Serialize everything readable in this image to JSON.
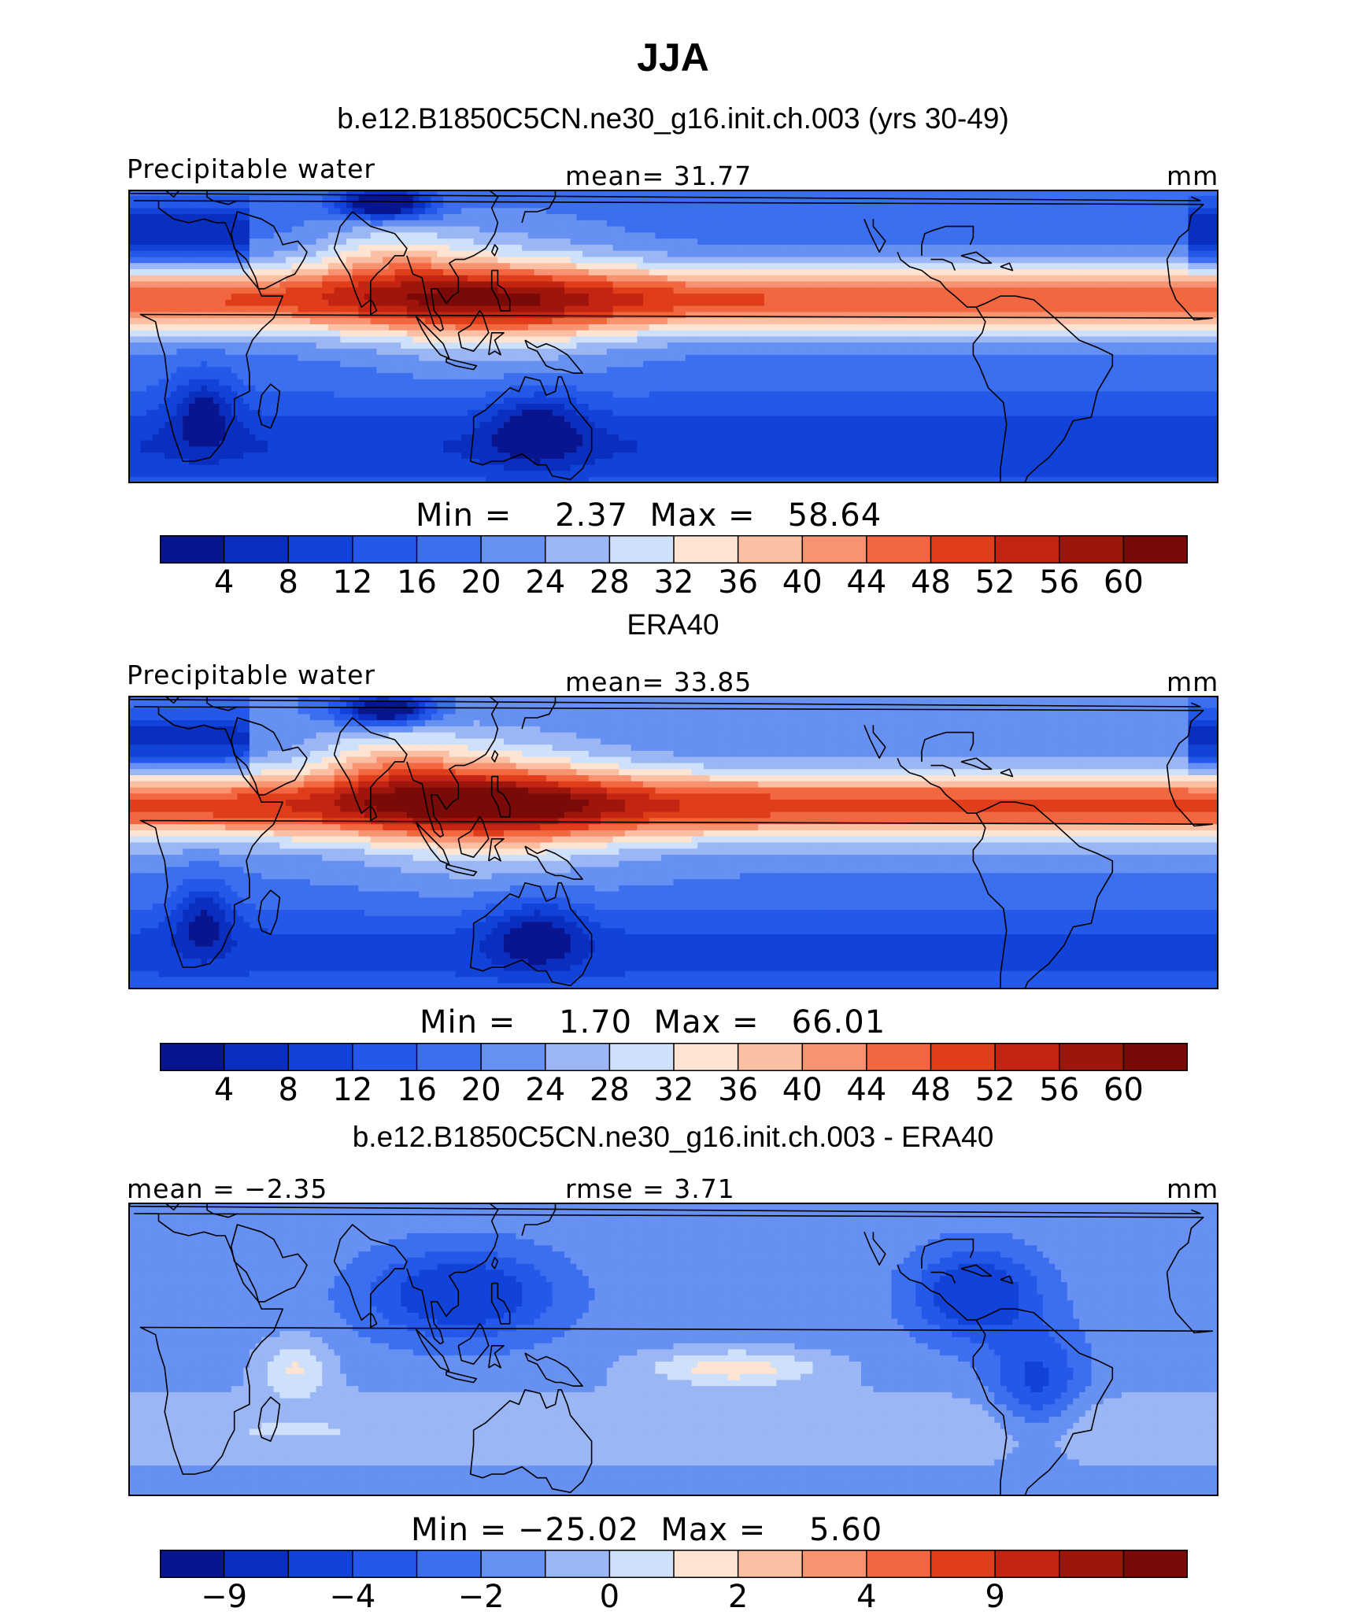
{
  "title": "JJA",
  "palettes": {
    "abs": [
      "#08158f",
      "#0a2fbf",
      "#1243d9",
      "#2458e8",
      "#3b6ff0",
      "#6690f2",
      "#9bb6f5",
      "#cfe0fa",
      "#fde4d3",
      "#fbbfa4",
      "#f79370",
      "#f26640",
      "#e03d1b",
      "#c42412",
      "#9e150c",
      "#7a0a08"
    ],
    "diff": [
      "#08158f",
      "#0a2fbf",
      "#1243d9",
      "#2458e8",
      "#3b6ff0",
      "#6690f2",
      "#9bb6f5",
      "#cfe0fa",
      "#fde4d3",
      "#fbbfa4",
      "#f79370",
      "#f26640",
      "#e03d1b",
      "#c42412",
      "#9e150c",
      "#7a0a08"
    ]
  },
  "panels": [
    {
      "id": "model",
      "subtitle": "b.e12.B1850C5CN.ne30_g16.init.ch.003 (yrs 30-49)",
      "left_label": "Precipitable water",
      "center_label": "mean=   31.77",
      "right_label": "mm",
      "minmax": "Min =    2.37  Max =   58.64",
      "ticks": [
        "4",
        "8",
        "12",
        "16",
        "20",
        "24",
        "28",
        "32",
        "36",
        "40",
        "44",
        "48",
        "52",
        "56",
        "60"
      ],
      "palette": "abs"
    },
    {
      "id": "obs",
      "subtitle": "ERA40",
      "left_label": "Precipitable water",
      "center_label": "mean=   33.85",
      "right_label": "mm",
      "minmax": "Min =    1.70  Max =   66.01",
      "ticks": [
        "4",
        "8",
        "12",
        "16",
        "20",
        "24",
        "28",
        "32",
        "36",
        "40",
        "44",
        "48",
        "52",
        "56",
        "60"
      ],
      "palette": "abs"
    },
    {
      "id": "diff",
      "subtitle": "b.e12.B1850C5CN.ne30_g16.init.ch.003 - ERA40",
      "left_label": "mean =  −2.35",
      "center_label": "rmse =   3.71",
      "right_label": "mm",
      "minmax": "Min = −25.02  Max =    5.60",
      "ticks": [
        "−9",
        "",
        "−4",
        "",
        "−2",
        "",
        "0",
        "",
        "2",
        "",
        "4",
        "",
        "9",
        "",
        ""
      ],
      "palette": "diff"
    }
  ]
}
